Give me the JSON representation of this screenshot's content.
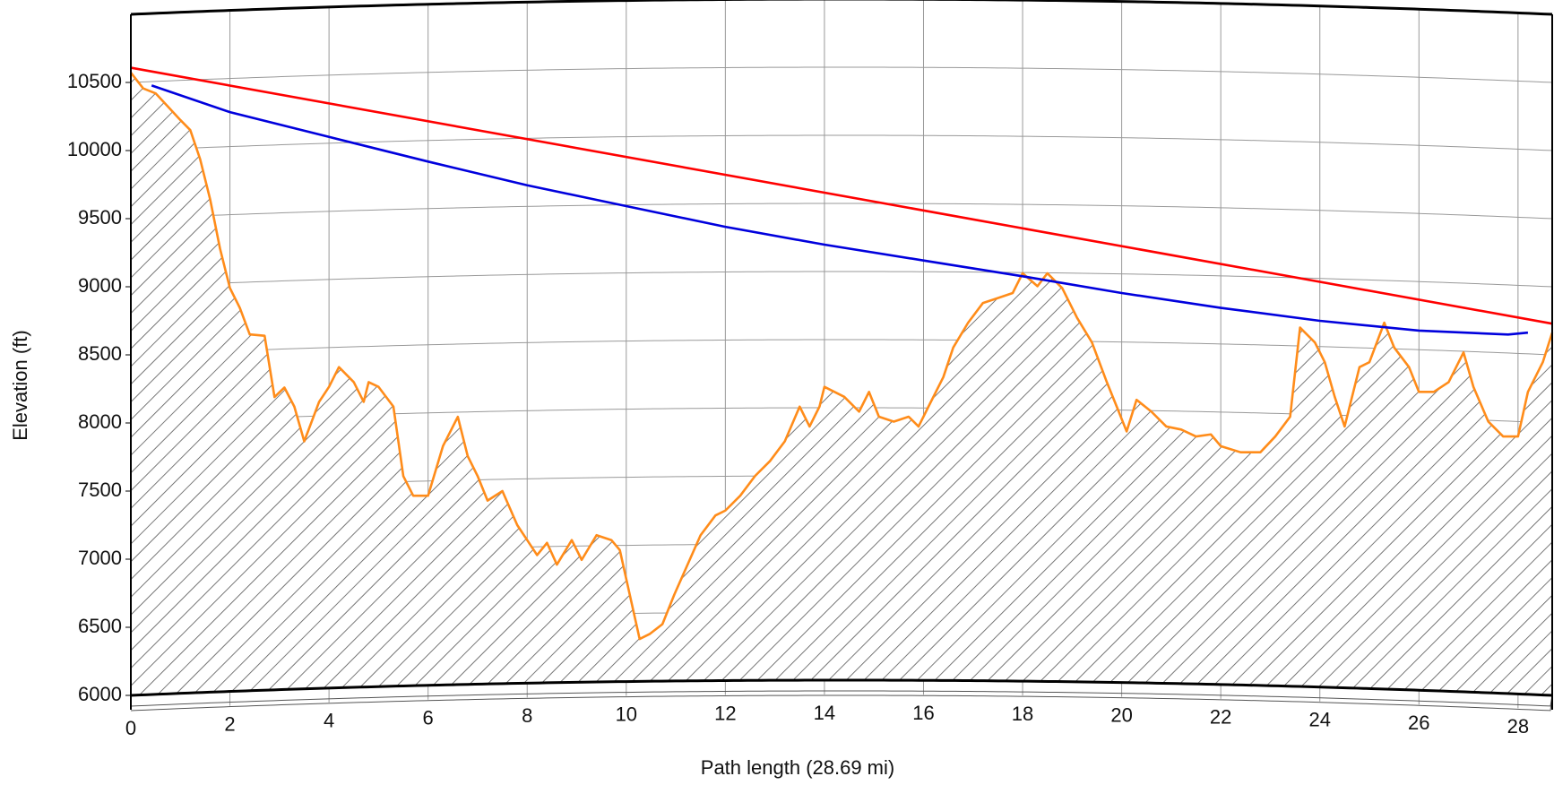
{
  "chart_data": {
    "type": "line",
    "xlabel": "Path length (28.69 mi)",
    "ylabel": "Elevation (ft)",
    "xlim": [
      0,
      28.69
    ],
    "ylim": [
      6000,
      11000
    ],
    "xticks": [
      0,
      2,
      4,
      6,
      8,
      10,
      12,
      14,
      16,
      18,
      20,
      22,
      24,
      26,
      28
    ],
    "yticks": [
      6000,
      6500,
      7000,
      7500,
      8000,
      8500,
      9000,
      9500,
      10000,
      10500
    ],
    "grid": true,
    "series": [
      {
        "color": "#ff8c1a",
        "fill": "hatch",
        "x": [
          0,
          0.25,
          0.5,
          1.0,
          1.2,
          1.4,
          1.6,
          1.8,
          2.0,
          2.2,
          2.4,
          2.7,
          2.9,
          3.1,
          3.3,
          3.5,
          3.8,
          4.0,
          4.2,
          4.5,
          4.7,
          4.8,
          5.0,
          5.3,
          5.5,
          5.7,
          6.0,
          6.3,
          6.6,
          6.8,
          7.0,
          7.2,
          7.5,
          7.8,
          8.0,
          8.2,
          8.4,
          8.6,
          8.9,
          9.1,
          9.4,
          9.7,
          9.87,
          10.07,
          10.27,
          10.47,
          10.73,
          10.97,
          11.28,
          11.5,
          11.8,
          12.0,
          12.3,
          12.6,
          12.9,
          13.2,
          13.5,
          13.7,
          13.9,
          14.0,
          14.4,
          14.7,
          14.9,
          15.1,
          15.4,
          15.7,
          15.9,
          16.1,
          16.4,
          16.6,
          16.9,
          17.2,
          17.5,
          17.8,
          18.0,
          18.3,
          18.5,
          18.8,
          19.1,
          19.4,
          19.7,
          19.9,
          20.1,
          20.3,
          20.6,
          20.9,
          21.2,
          21.5,
          21.8,
          22.0,
          22.4,
          22.8,
          23.1,
          23.4,
          23.6,
          23.9,
          24.1,
          24.3,
          24.5,
          24.8,
          25.0,
          25.3,
          25.5,
          25.8,
          26.0,
          26.3,
          26.6,
          26.9,
          27.1,
          27.4,
          27.7,
          28.0,
          28.2,
          28.5,
          28.69
        ],
        "values": [
          10572,
          10456,
          10420,
          10224,
          10150,
          9935,
          9643,
          9280,
          8990,
          8845,
          8650,
          8640,
          8190,
          8260,
          8120,
          7865,
          8155,
          8265,
          8410,
          8300,
          8155,
          8300,
          8265,
          8120,
          7610,
          7466,
          7466,
          7830,
          8045,
          7756,
          7610,
          7430,
          7500,
          7250,
          7140,
          7030,
          7120,
          6960,
          7140,
          6995,
          7176,
          7140,
          7067,
          6740,
          6414,
          6450,
          6523,
          6740,
          6995,
          7176,
          7321,
          7357,
          7466,
          7611,
          7720,
          7865,
          8120,
          7974,
          8120,
          8265,
          8192,
          8083,
          8228,
          8046,
          8010,
          8046,
          7974,
          8120,
          8337,
          8554,
          8736,
          8881,
          8917,
          8954,
          9099,
          9004,
          9099,
          8990,
          8772,
          8591,
          8300,
          8120,
          7938,
          8170,
          8083,
          7974,
          7952,
          7901,
          7916,
          7830,
          7785,
          7785,
          7901,
          8046,
          8700,
          8591,
          8446,
          8192,
          7974,
          8410,
          8446,
          8736,
          8554,
          8410,
          8228,
          8228,
          8300,
          8518,
          8265,
          8010,
          7901,
          7901,
          8228,
          8446,
          8663
        ]
      },
      {
        "color": "#ff0000",
        "x": [
          0,
          28.69
        ],
        "values": [
          10608,
          8729
        ]
      },
      {
        "color": "#0000dd",
        "x": [
          0.42,
          2,
          4,
          6,
          8,
          10,
          12,
          14,
          16,
          18,
          20,
          22,
          24,
          26,
          27.8,
          28.2
        ],
        "values": [
          10478,
          10282,
          10100,
          9919,
          9745,
          9592,
          9440,
          9309,
          9193,
          9077,
          8954,
          8845,
          8750,
          8678,
          8649,
          8663
        ]
      }
    ]
  }
}
